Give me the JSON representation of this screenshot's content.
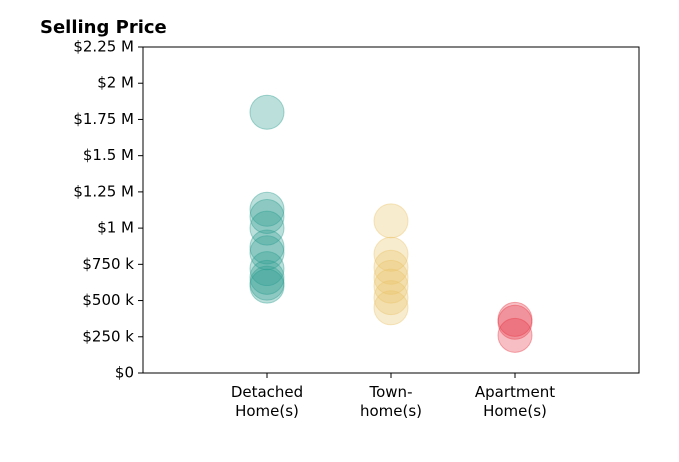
{
  "chart_data": {
    "type": "strip",
    "title": "Selling Price",
    "categories": [
      "Detached\nHome(s)",
      "Town-\nhome(s)",
      "Apartment\nHome(s)"
    ],
    "values": [
      [
        1800000,
        1130000,
        1080000,
        1000000,
        870000,
        830000,
        720000,
        660000,
        620000,
        600000
      ],
      [
        1050000,
        820000,
        730000,
        660000,
        600000,
        520000,
        450000
      ],
      [
        370000,
        350000,
        260000
      ]
    ],
    "colors": [
      "#2a9d8f",
      "#e9c46a",
      "#e63946"
    ],
    "opacity": 0.32,
    "ylim": [
      0,
      2250000
    ],
    "yticks": [
      {
        "value": 0,
        "label": "$0"
      },
      {
        "value": 250000,
        "label": "$250 k"
      },
      {
        "value": 500000,
        "label": "$500 k"
      },
      {
        "value": 750000,
        "label": "$750 k"
      },
      {
        "value": 1000000,
        "label": "$1 M"
      },
      {
        "value": 1250000,
        "label": "$1.25 M"
      },
      {
        "value": 1500000,
        "label": "$1.5 M"
      },
      {
        "value": 1750000,
        "label": "$1.75 M"
      },
      {
        "value": 2000000,
        "label": "$2 M"
      },
      {
        "value": 2250000,
        "label": "$2.25 M"
      }
    ]
  }
}
